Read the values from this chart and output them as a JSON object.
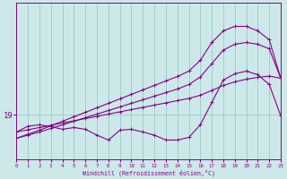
{
  "bg_color": "#cce8e8",
  "grid_color": "#99cccc",
  "line_color": "#880088",
  "xlabel": "Windchill (Refroidissement éolien,°C)",
  "xlim": [
    0,
    23
  ],
  "ylim_bottom": 18.0,
  "ylim_top": 21.5,
  "ytick_val": 19,
  "ytick_label": "19",
  "xticks": [
    0,
    1,
    2,
    3,
    4,
    5,
    6,
    7,
    8,
    9,
    10,
    11,
    12,
    13,
    14,
    15,
    16,
    17,
    18,
    19,
    20,
    21,
    22,
    23
  ],
  "line1_x": [
    0,
    1,
    2,
    3,
    4,
    5,
    6,
    7,
    8,
    9,
    10,
    11,
    12,
    13,
    14,
    15,
    16,
    17,
    18,
    19,
    20,
    21,
    22,
    23
  ],
  "line1_y": [
    18.62,
    18.67,
    18.72,
    18.77,
    18.82,
    18.87,
    18.92,
    18.97,
    19.02,
    19.07,
    19.12,
    19.17,
    19.22,
    19.27,
    19.32,
    19.37,
    19.44,
    19.55,
    19.66,
    19.74,
    19.8,
    19.84,
    19.87,
    19.82
  ],
  "line2_x": [
    0,
    1,
    2,
    3,
    4,
    5,
    6,
    7,
    8,
    9,
    10,
    11,
    12,
    13,
    14,
    15,
    16,
    17,
    18,
    19,
    20,
    21,
    22,
    23
  ],
  "line2_y": [
    18.48,
    18.55,
    18.62,
    18.7,
    18.78,
    18.86,
    18.94,
    19.02,
    19.1,
    19.18,
    19.26,
    19.34,
    19.42,
    19.5,
    19.58,
    19.68,
    19.85,
    20.15,
    20.45,
    20.58,
    20.62,
    20.58,
    20.48,
    19.82
  ],
  "line3_x": [
    0,
    1,
    2,
    3,
    4,
    5,
    6,
    7,
    8,
    9,
    10,
    11,
    12,
    13,
    14,
    15,
    16,
    17,
    18,
    19,
    20,
    21,
    22,
    23
  ],
  "line3_y": [
    18.48,
    18.57,
    18.66,
    18.76,
    18.86,
    18.96,
    19.06,
    19.16,
    19.26,
    19.36,
    19.46,
    19.56,
    19.66,
    19.76,
    19.86,
    19.98,
    20.22,
    20.62,
    20.88,
    20.98,
    20.98,
    20.88,
    20.68,
    19.82
  ],
  "line4_x": [
    0,
    1,
    2,
    3,
    4,
    5,
    6,
    7,
    8,
    9,
    10,
    11,
    12,
    13,
    14,
    15,
    16,
    17,
    18,
    19,
    20,
    21,
    22,
    23
  ],
  "line4_y": [
    18.62,
    18.75,
    18.78,
    18.74,
    18.68,
    18.72,
    18.68,
    18.55,
    18.44,
    18.66,
    18.68,
    18.62,
    18.55,
    18.44,
    18.44,
    18.5,
    18.78,
    19.28,
    19.78,
    19.92,
    19.98,
    19.9,
    19.68,
    18.98
  ]
}
